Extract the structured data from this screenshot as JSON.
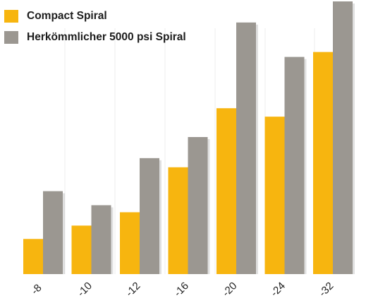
{
  "chart_data": {
    "type": "bar",
    "categories": [
      "-8",
      "-10",
      "-12",
      "-16",
      "-20",
      "-24",
      "-32"
    ],
    "series": [
      {
        "name": "Compact Spiral",
        "color": "#f7b50f",
        "values": [
          50,
          69,
          88,
          152,
          236,
          224,
          316
        ]
      },
      {
        "name": "Herkömmlicher 5000 psi Spiral",
        "color": "#9b9791",
        "values": [
          118,
          98,
          165,
          195,
          358,
          309,
          388
        ]
      }
    ],
    "ylim": [
      0,
      390
    ],
    "grid": "vertical",
    "legend": "top-left",
    "title": "",
    "xlabel": "",
    "ylabel": ""
  }
}
